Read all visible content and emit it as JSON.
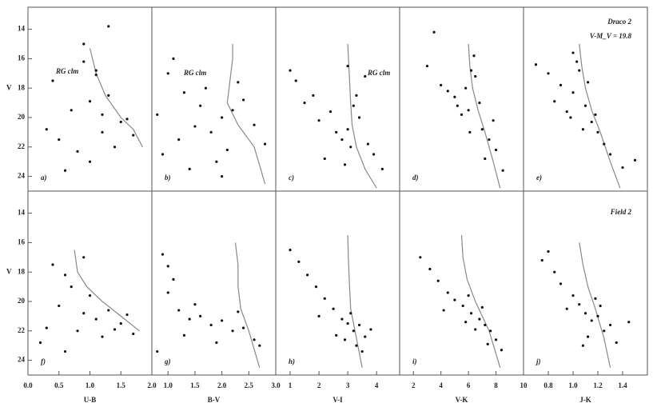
{
  "chart_data": [
    {
      "type": "scatter",
      "panel": "a)",
      "annotations": [
        "RG clm"
      ],
      "xlim": [
        0.0,
        2.0
      ],
      "ylim": [
        12.5,
        25
      ],
      "yticks": [
        14,
        16,
        18,
        20,
        22,
        24
      ],
      "ylabel": "V",
      "x": [
        0.9,
        1.1,
        1.3,
        1.0,
        0.7,
        1.5,
        1.6,
        1.2,
        0.5,
        0.3,
        0.8,
        1.4,
        1.7,
        0.6,
        1.0,
        1.2,
        0.4,
        1.1,
        0.9,
        1.3
      ],
      "y": [
        16.2,
        17.1,
        18.5,
        18.9,
        19.5,
        20.3,
        20.1,
        21.0,
        21.5,
        20.8,
        22.3,
        22.0,
        21.2,
        23.6,
        23.0,
        19.8,
        17.5,
        16.8,
        15.0,
        13.8
      ],
      "isochrone": {
        "x": [
          1.0,
          1.1,
          1.25,
          1.5,
          1.7,
          1.85
        ],
        "y": [
          15.3,
          17.0,
          18.5,
          20.0,
          20.8,
          22.0
        ]
      }
    },
    {
      "type": "scatter",
      "panel": "b)",
      "annotations": [
        "RG clm"
      ],
      "xlim": [
        0.7,
        3.0
      ],
      "ylim": [
        12.5,
        25
      ],
      "x": [
        1.0,
        1.3,
        1.6,
        2.0,
        2.2,
        2.4,
        1.8,
        1.2,
        0.9,
        2.6,
        2.1,
        1.5,
        1.9,
        2.3,
        1.1,
        2.8,
        1.7,
        2.0,
        0.8,
        1.4
      ],
      "y": [
        17.0,
        18.3,
        19.2,
        20.0,
        19.5,
        18.8,
        21.0,
        21.5,
        22.5,
        20.5,
        22.2,
        20.6,
        23.0,
        17.6,
        16.0,
        21.8,
        18.0,
        24.0,
        19.8,
        23.5
      ],
      "isochrone": {
        "x": [
          2.2,
          2.2,
          2.15,
          2.1,
          2.3,
          2.6,
          2.8
        ],
        "y": [
          15,
          16,
          17.5,
          19,
          20.5,
          22,
          24.5
        ]
      }
    },
    {
      "type": "scatter",
      "panel": "c)",
      "annotations": [
        "RG clm"
      ],
      "xlim": [
        0.5,
        4.8
      ],
      "ylim": [
        12.5,
        25
      ],
      "x": [
        1.2,
        1.8,
        2.4,
        3.0,
        3.3,
        3.6,
        2.8,
        2.0,
        1.5,
        3.9,
        3.1,
        2.6,
        3.4,
        4.2,
        2.2,
        3.0,
        1.0,
        3.7,
        2.9,
        3.2
      ],
      "y": [
        17.5,
        18.5,
        19.6,
        20.8,
        18.5,
        17.2,
        21.5,
        20.2,
        19.0,
        22.5,
        22.0,
        21.0,
        20.0,
        23.5,
        22.8,
        16.5,
        16.8,
        21.8,
        23.2,
        19.2
      ],
      "isochrone": {
        "x": [
          3.0,
          3.05,
          3.1,
          3.15,
          3.3,
          3.6,
          4.0
        ],
        "y": [
          15,
          17,
          19,
          20.5,
          22,
          23.5,
          24.8
        ]
      }
    },
    {
      "type": "scatter",
      "panel": "d)",
      "xlim": [
        1,
        10
      ],
      "ylim": [
        12.5,
        25
      ],
      "x": [
        3,
        4,
        5,
        6,
        6.5,
        7,
        5.5,
        6.2,
        7.5,
        8,
        4.5,
        6.8,
        7.2,
        5.8,
        8.5,
        6.4,
        3.5,
        7.8,
        6.1,
        5.2
      ],
      "y": [
        16.5,
        17.8,
        18.6,
        19.5,
        17.2,
        20.8,
        19.8,
        16.8,
        21.5,
        22.2,
        18.2,
        19.0,
        22.8,
        18.0,
        23.6,
        15.8,
        14.2,
        20.2,
        21.0,
        19.2
      ],
      "isochrone": {
        "x": [
          6,
          6.1,
          6.3,
          6.7,
          7.2,
          7.8,
          8.3
        ],
        "y": [
          15,
          16.5,
          18,
          19.5,
          21,
          23,
          24.8
        ]
      }
    },
    {
      "type": "scatter",
      "panel": "e)",
      "annotations": [
        "Draco 2",
        "V-M_V = 19.8"
      ],
      "xlim": [
        0.6,
        1.6
      ],
      "ylim": [
        12.5,
        25
      ],
      "x": [
        0.8,
        0.9,
        1.0,
        1.05,
        1.1,
        0.95,
        1.15,
        1.2,
        1.25,
        1.0,
        0.85,
        1.3,
        1.08,
        1.4,
        0.7,
        1.12,
        1.5,
        0.98,
        1.18,
        1.03
      ],
      "y": [
        17.0,
        17.8,
        18.3,
        16.8,
        19.2,
        19.6,
        20.3,
        21.0,
        21.8,
        15.6,
        18.9,
        22.5,
        20.8,
        23.4,
        16.4,
        17.6,
        22.9,
        20.0,
        19.8,
        16.2
      ],
      "isochrone": {
        "x": [
          1.05,
          1.07,
          1.1,
          1.15,
          1.22,
          1.3,
          1.38
        ],
        "y": [
          15,
          16.5,
          18,
          19.5,
          21,
          23,
          24.8
        ]
      }
    },
    {
      "type": "scatter",
      "panel": "f)",
      "xlabel": "U-B",
      "xlim": [
        0.0,
        2.0
      ],
      "xticks": [
        {
          "value": 0.0,
          "label": "0.0"
        },
        {
          "value": 0.5,
          "label": "0.5"
        },
        {
          "value": 1.0,
          "label": "1.0"
        },
        {
          "value": 1.5,
          "label": "1.5"
        },
        {
          "value": 2.0,
          "label": "2.0"
        }
      ],
      "ylim": [
        12.5,
        25
      ],
      "yticks": [
        14,
        16,
        18,
        20,
        22,
        24
      ],
      "ylabel": "V",
      "x": [
        0.4,
        0.6,
        0.7,
        0.5,
        0.9,
        1.1,
        1.3,
        1.5,
        0.3,
        0.8,
        1.2,
        1.6,
        0.2,
        1.0,
        1.4,
        0.6,
        1.7,
        0.9
      ],
      "y": [
        17.5,
        18.2,
        19.0,
        20.3,
        20.8,
        21.2,
        20.6,
        21.5,
        21.8,
        22.0,
        22.4,
        20.9,
        22.8,
        19.6,
        21.9,
        23.4,
        22.2,
        17.0
      ],
      "isochrone": {
        "x": [
          0.75,
          0.8,
          0.95,
          1.2,
          1.5,
          1.8
        ],
        "y": [
          16.5,
          18.0,
          19.0,
          20.0,
          21.0,
          22.0
        ]
      }
    },
    {
      "type": "scatter",
      "panel": "g)",
      "xlabel": "B-V",
      "xlim": [
        0.7,
        3.0
      ],
      "xticks": [
        {
          "value": 1.0,
          "label": "1.0"
        },
        {
          "value": 1.5,
          "label": "1.5"
        },
        {
          "value": 2.0,
          "label": "2.0"
        },
        {
          "value": 2.5,
          "label": "2.5"
        },
        {
          "value": 3.0,
          "label": "3.0"
        }
      ],
      "ylim": [
        12.5,
        25
      ],
      "x": [
        0.9,
        1.0,
        1.1,
        1.0,
        1.2,
        1.4,
        1.6,
        1.8,
        2.0,
        2.2,
        2.4,
        2.6,
        1.3,
        1.5,
        1.9,
        2.3,
        0.8,
        2.7
      ],
      "y": [
        16.8,
        17.6,
        18.5,
        19.4,
        20.6,
        21.2,
        21.0,
        21.6,
        21.3,
        22.0,
        21.8,
        22.6,
        22.3,
        20.2,
        22.8,
        20.7,
        23.4,
        23.0
      ],
      "isochrone": {
        "x": [
          2.25,
          2.3,
          2.3,
          2.35,
          2.5,
          2.7
        ],
        "y": [
          16,
          17.5,
          19,
          20.5,
          22,
          24.5
        ]
      }
    },
    {
      "type": "scatter",
      "panel": "h)",
      "xlabel": "V-I",
      "xlim": [
        0.5,
        4.8
      ],
      "xticks": [
        1,
        2,
        3,
        4
      ],
      "ylim": [
        12.5,
        25
      ],
      "x": [
        1.0,
        1.3,
        1.6,
        1.9,
        2.2,
        2.5,
        2.8,
        3.0,
        3.2,
        3.4,
        3.6,
        2.9,
        3.1,
        3.3,
        2.6,
        3.8,
        2.0,
        3.5
      ],
      "y": [
        16.5,
        17.3,
        18.2,
        19.0,
        19.8,
        20.5,
        21.2,
        21.5,
        22.0,
        21.6,
        22.4,
        22.6,
        20.8,
        23.0,
        22.3,
        21.9,
        21.0,
        23.4
      ],
      "isochrone": {
        "x": [
          3.0,
          3.02,
          3.05,
          3.1,
          3.3,
          3.5
        ],
        "y": [
          15.5,
          17,
          18.5,
          20.5,
          22.5,
          24.5
        ]
      }
    },
    {
      "type": "scatter",
      "panel": "i)",
      "xlabel": "V-K",
      "xlim": [
        1,
        10
      ],
      "xticks": [
        2,
        4,
        6,
        8,
        10
      ],
      "ylim": [
        12.5,
        25
      ],
      "x": [
        2.5,
        3.2,
        3.8,
        4.5,
        5.0,
        5.6,
        6.2,
        6.8,
        7.2,
        7.6,
        8.0,
        6.5,
        7.0,
        5.8,
        8.4,
        4.2,
        7.4,
        6.0
      ],
      "y": [
        17.0,
        17.8,
        18.6,
        19.4,
        19.9,
        20.3,
        20.8,
        21.2,
        21.6,
        22.0,
        22.6,
        21.9,
        20.4,
        21.4,
        23.3,
        20.6,
        22.9,
        19.6
      ],
      "isochrone": {
        "x": [
          5.5,
          5.6,
          5.9,
          6.5,
          7.5,
          8.3
        ],
        "y": [
          15.5,
          17,
          18.5,
          20,
          22,
          24.5
        ]
      }
    },
    {
      "type": "scatter",
      "panel": "j)",
      "annotations": [
        "Field 2"
      ],
      "xlabel": "J-K",
      "xlim": [
        0.6,
        1.6
      ],
      "xticks": [
        {
          "value": 0.8,
          "label": "0.8"
        },
        {
          "value": 1.0,
          "label": "1.0"
        },
        {
          "value": 1.2,
          "label": "1.2"
        },
        {
          "value": 1.4,
          "label": "1.4"
        }
      ],
      "ylim": [
        12.5,
        25
      ],
      "x": [
        0.75,
        0.85,
        0.9,
        1.0,
        1.05,
        1.1,
        1.15,
        1.2,
        1.25,
        1.3,
        0.95,
        1.12,
        1.18,
        1.35,
        1.45,
        0.8,
        1.08,
        1.22
      ],
      "y": [
        17.2,
        18.0,
        18.8,
        19.6,
        20.2,
        20.8,
        21.3,
        21.0,
        22.0,
        21.6,
        20.5,
        22.4,
        19.8,
        22.8,
        21.4,
        16.6,
        23.0,
        20.3
      ],
      "isochrone": {
        "x": [
          1.05,
          1.08,
          1.12,
          1.18,
          1.25,
          1.3
        ],
        "y": [
          16,
          17.5,
          19,
          20.5,
          22.5,
          24.5
        ]
      }
    }
  ]
}
